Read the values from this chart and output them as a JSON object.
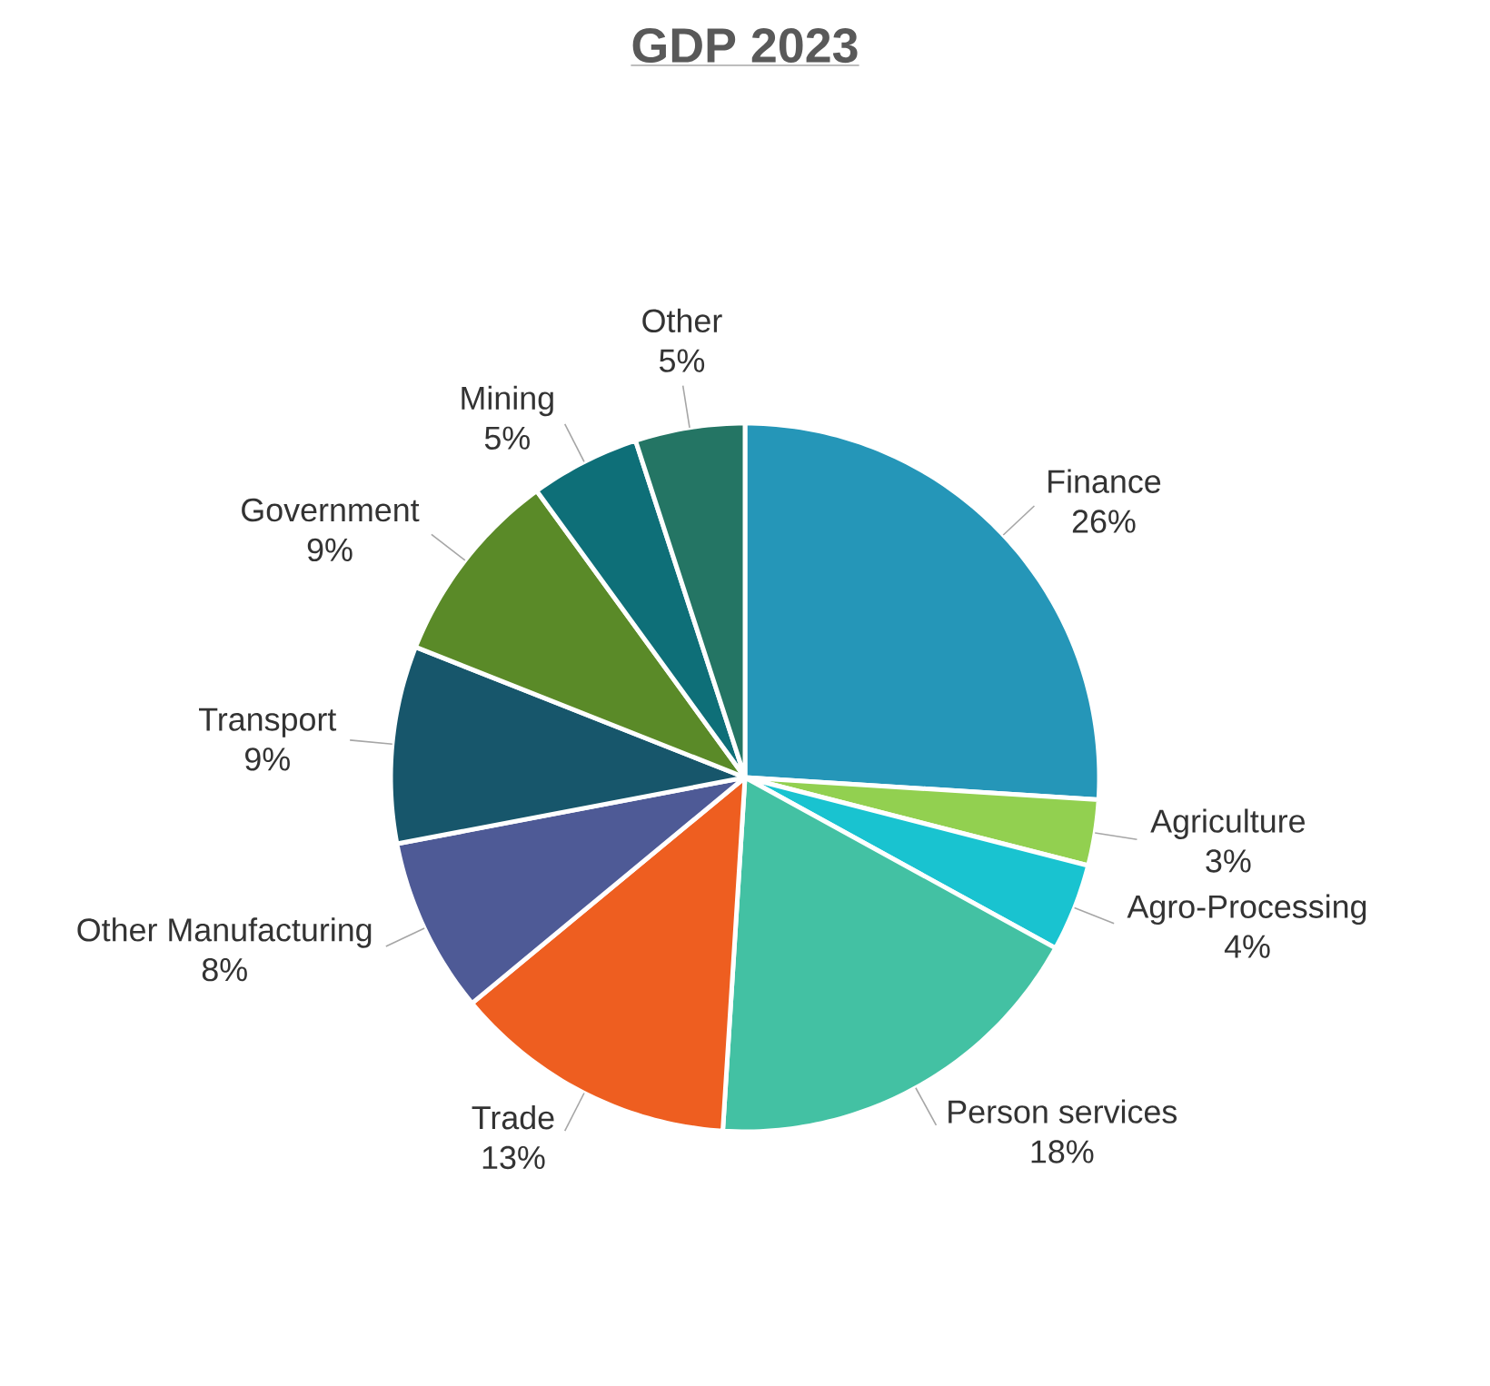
{
  "chart_data": {
    "type": "pie",
    "title": "GDP 2023",
    "categories": [
      "Finance",
      "Agriculture",
      "Agro-Processing",
      "Person services",
      "Trade",
      "Other Manufacturing",
      "Transport",
      "Government",
      "Mining",
      "Other"
    ],
    "values": [
      26,
      3,
      4,
      18,
      13,
      8,
      9,
      9,
      5,
      5
    ],
    "value_labels": [
      "26%",
      "3%",
      "4%",
      "18%",
      "13%",
      "8%",
      "9%",
      "9%",
      "5%",
      "5%"
    ],
    "colors": [
      "#2596b8",
      "#92d050",
      "#19c3d0",
      "#43c1a3",
      "#ee5e20",
      "#4e5a96",
      "#17566b",
      "#5a8a28",
      "#0e6f78",
      "#247564"
    ]
  }
}
